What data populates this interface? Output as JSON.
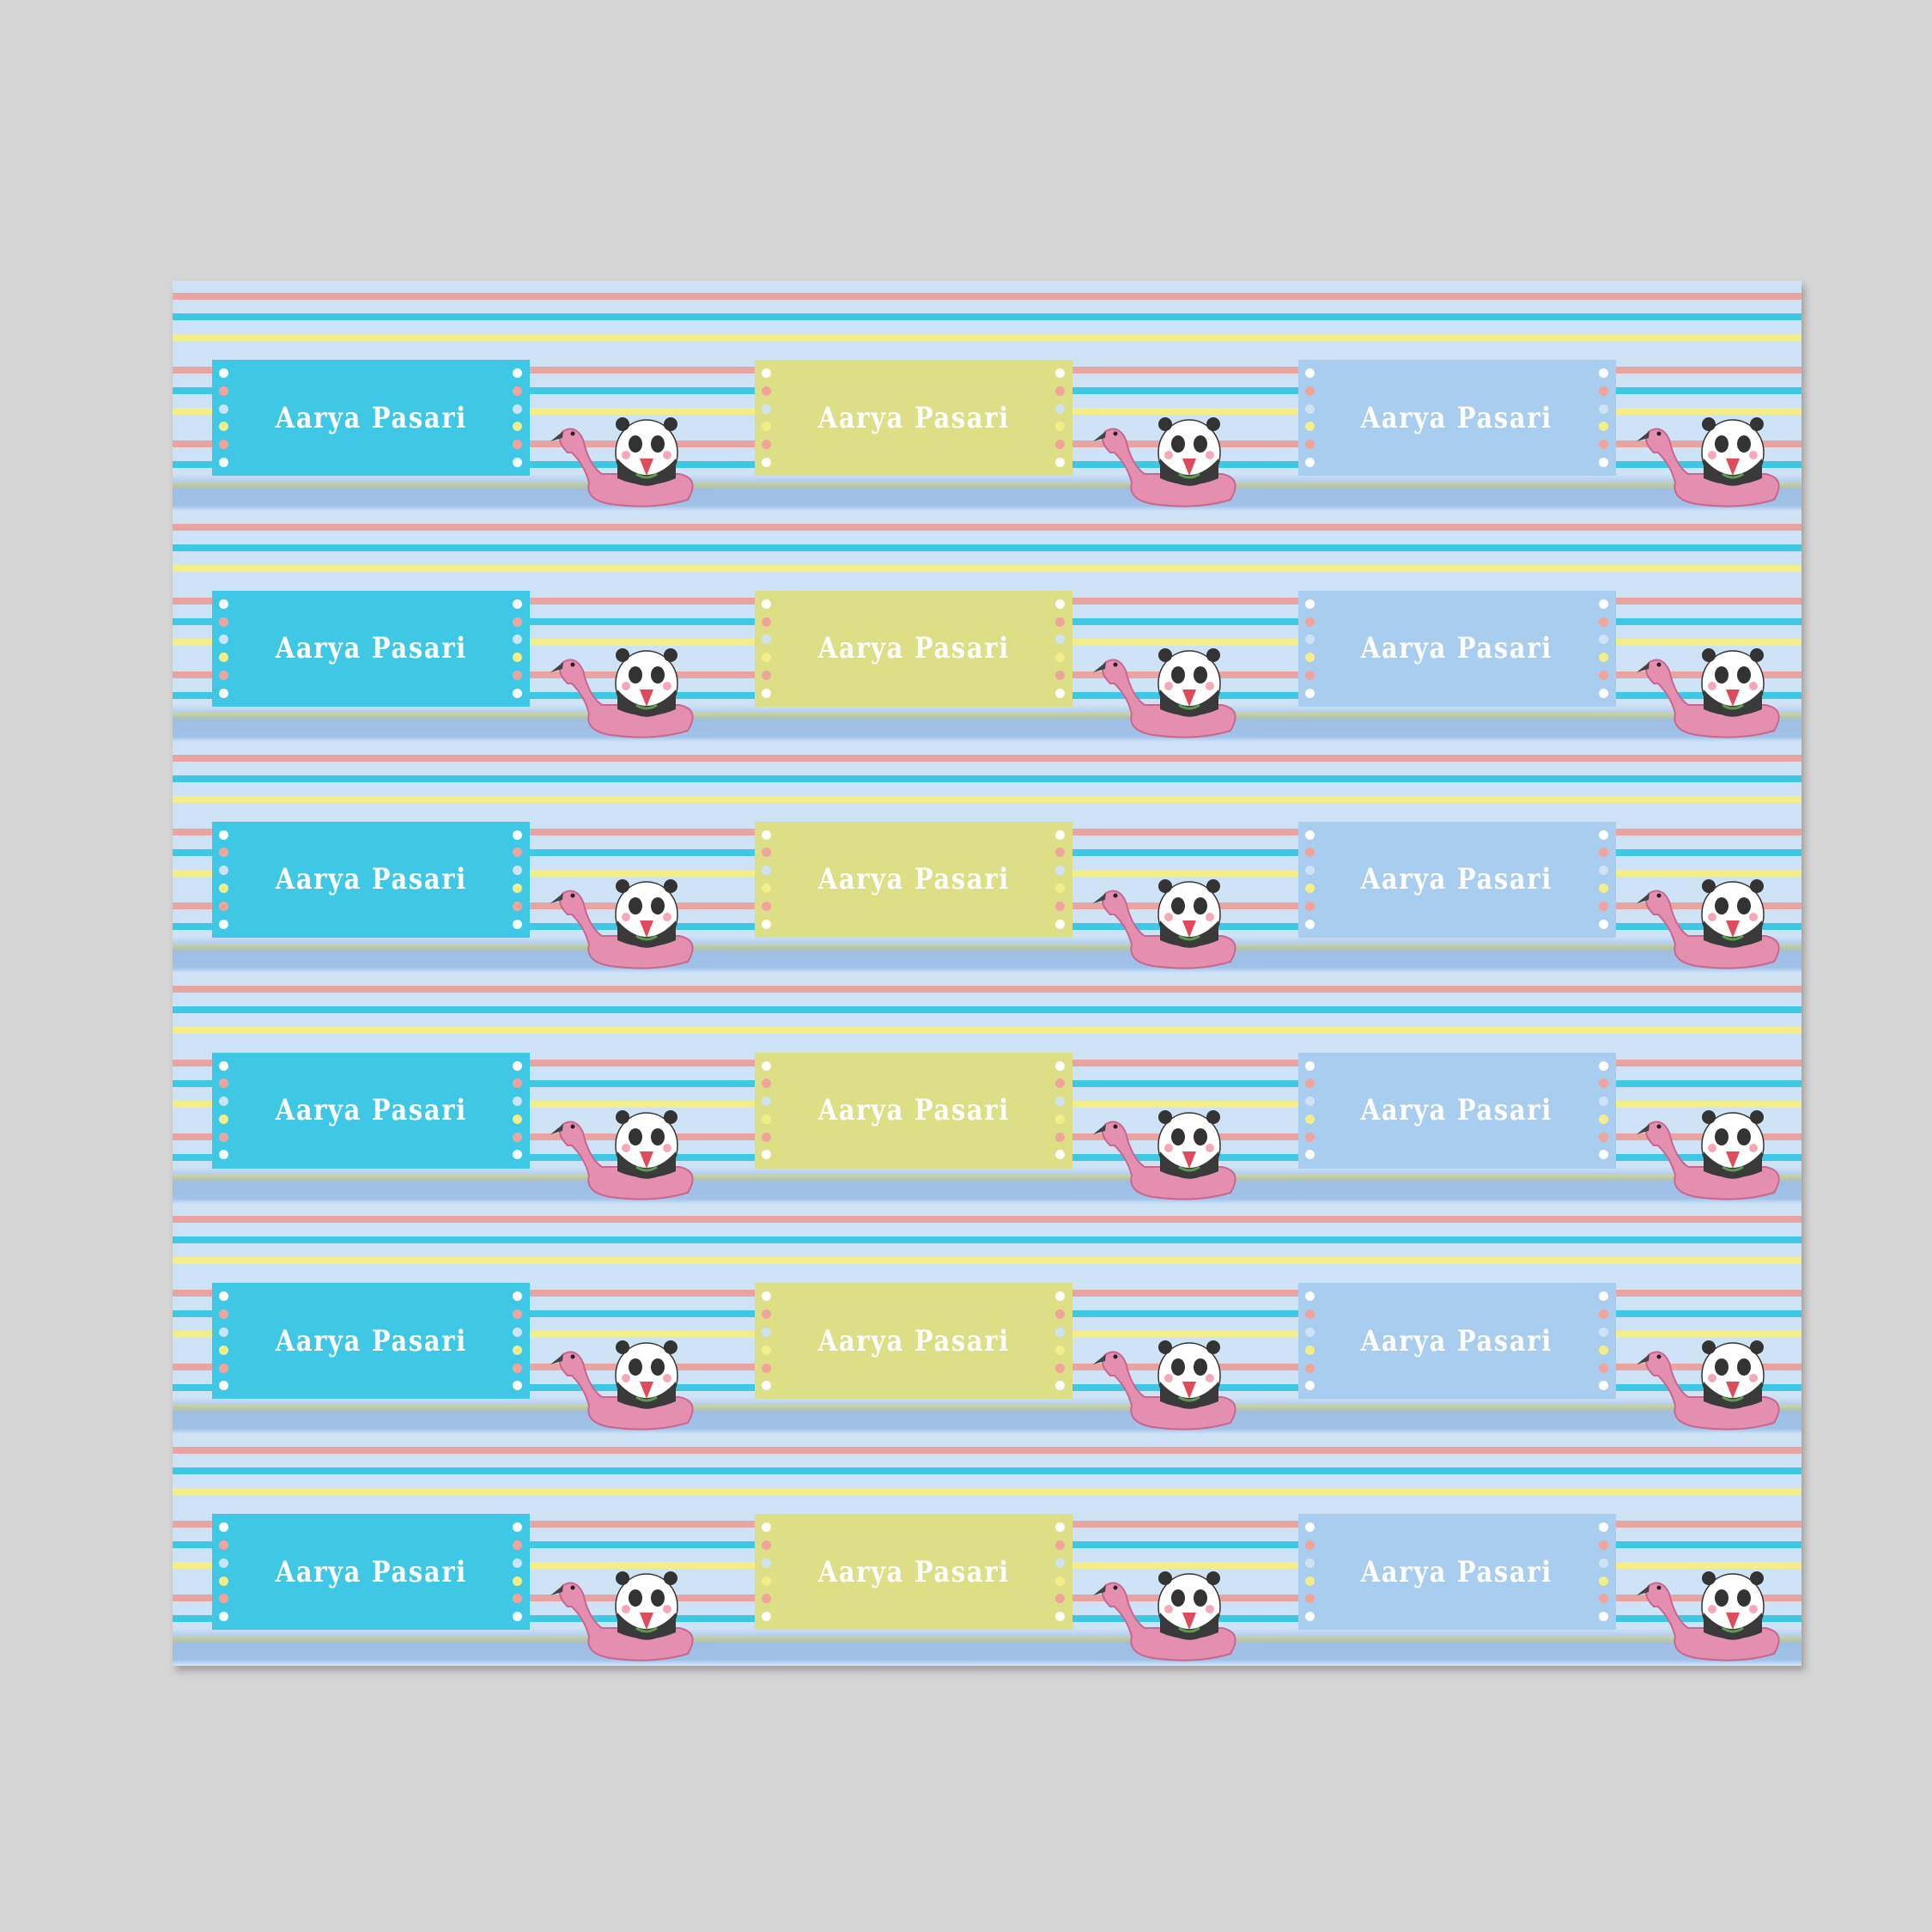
{
  "sheet": {
    "rows": 6,
    "columns": 3,
    "label_name": "Aarya Pasari",
    "column_colors": [
      "#3ec8e6",
      "#dcdf86",
      "#a9cdee"
    ],
    "dot_colors": [
      "#ffffff",
      "#f2a49c",
      "#cfe3f7",
      "#f4ee8a",
      "#f2a49c",
      "#ffffff"
    ],
    "stripe_colors": [
      "#e9a3a0",
      "#3ec8e6",
      "#f4ee8a",
      "#cfe3f7"
    ],
    "illustration": "panda-on-flamingo-float-icon"
  }
}
